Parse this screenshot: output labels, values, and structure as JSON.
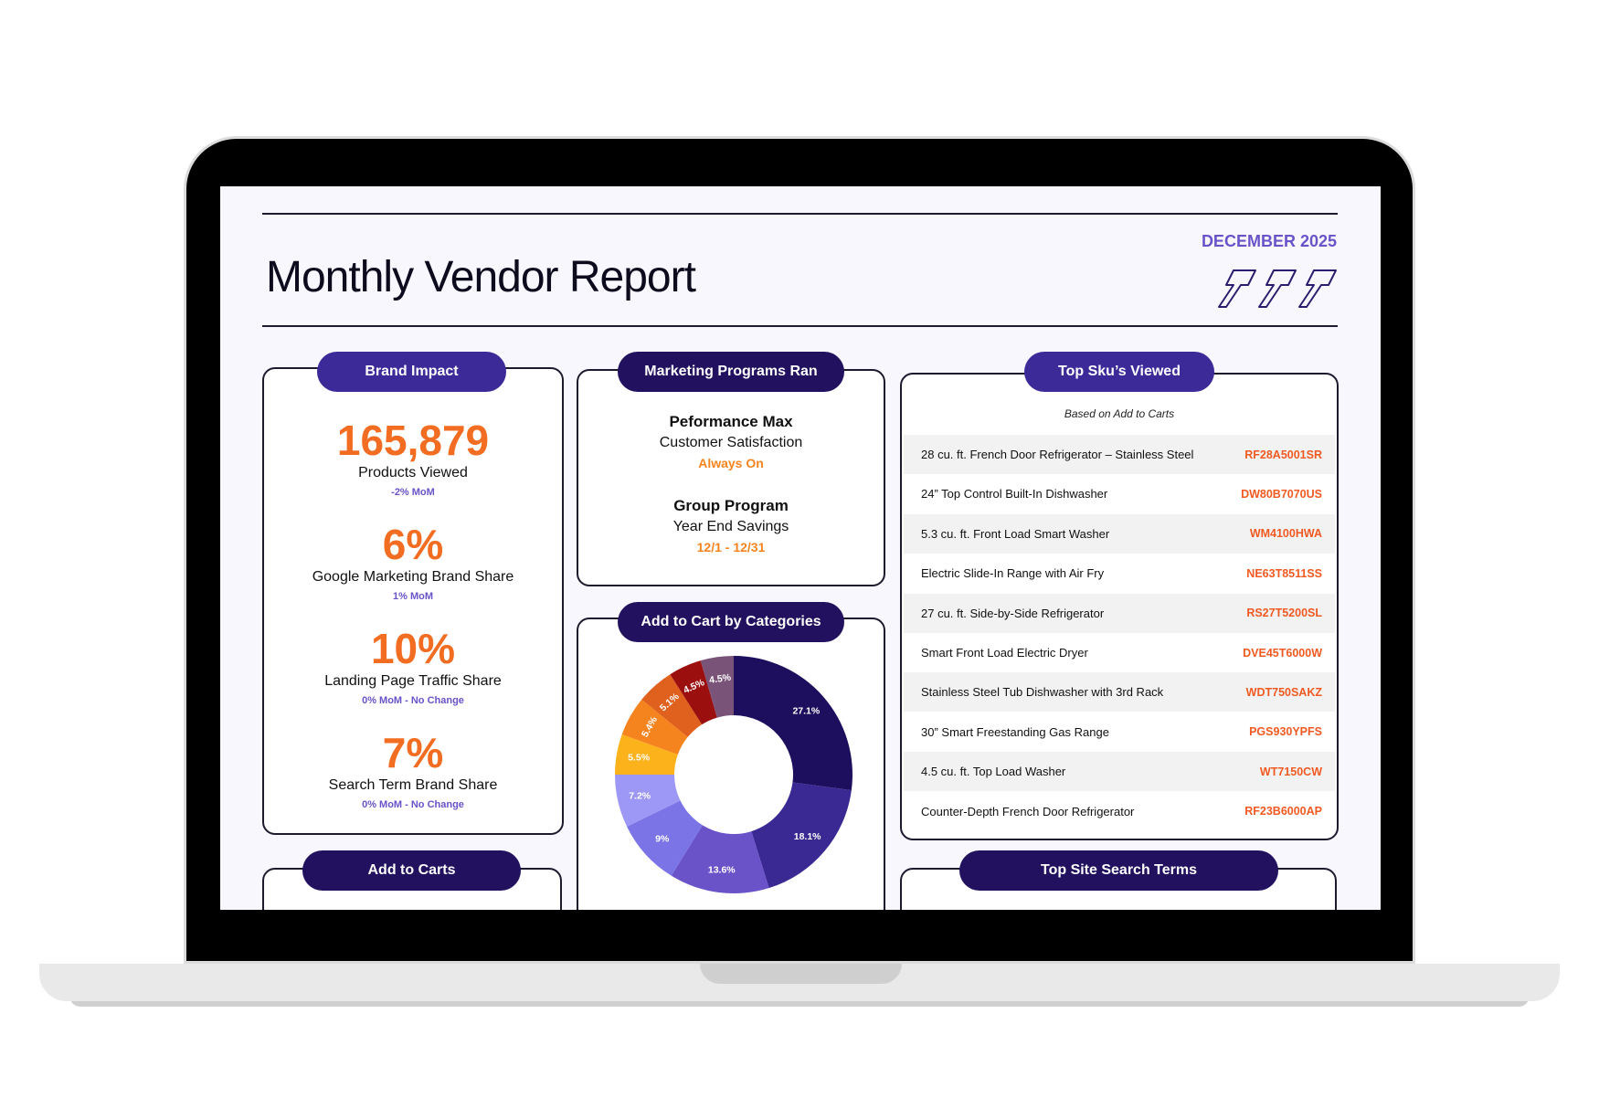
{
  "report": {
    "title": "Monthly Vendor Report",
    "date": "DECEMBER 2025"
  },
  "brand_impact": {
    "header": "Brand Impact",
    "metrics": [
      {
        "value": "165,879",
        "label": "Products Viewed",
        "change": "-2% MoM"
      },
      {
        "value": "6%",
        "label": "Google Marketing Brand Share",
        "change": "1% MoM"
      },
      {
        "value": "10%",
        "label": "Landing Page Traffic Share",
        "change": "0% MoM - No Change"
      },
      {
        "value": "7%",
        "label": "Search Term Brand Share",
        "change": "0% MoM - No Change"
      }
    ]
  },
  "marketing_programs": {
    "header": "Marketing Programs Ran",
    "programs": [
      {
        "title": "Peformance Max",
        "subtitle": "Customer Satisfaction",
        "note": "Always On"
      },
      {
        "title": "Group Program",
        "subtitle": "Year End Savings",
        "note": "12/1 - 12/31"
      }
    ]
  },
  "add_to_cart_categories": {
    "header": "Add to Cart by Categories"
  },
  "chart_data": {
    "type": "pie",
    "title": "Add to Cart by Categories",
    "donut": true,
    "values": [
      27.1,
      18.1,
      13.6,
      9,
      7.2,
      5.5,
      5.4,
      5.1,
      4.5,
      4.5
    ],
    "labels": [
      "27.1%",
      "18.1%",
      "13.6%",
      "9%",
      "7.2%",
      "5.5%",
      "5.4%",
      "5.1%",
      "4.5%",
      "4.5%"
    ],
    "colors": [
      "#1d0f5e",
      "#3a2993",
      "#6a53c9",
      "#7b74e6",
      "#9d97f5",
      "#fcb21a",
      "#f5841f",
      "#e0601d",
      "#9b0f0f",
      "#7a5478"
    ]
  },
  "top_skus": {
    "header": "Top Sku’s Viewed",
    "subtitle": "Based on Add to Carts",
    "rows": [
      {
        "name": "28 cu. ft. French Door Refrigerator – Stainless Steel",
        "code": "RF28A5001SR"
      },
      {
        "name": "24” Top Control Built-In Dishwasher",
        "code": "DW80B7070US"
      },
      {
        "name": "5.3 cu. ft. Front Load Smart Washer",
        "code": "WM4100HWA"
      },
      {
        "name": "Electric Slide-In Range with Air Fry",
        "code": "NE63T8511SS"
      },
      {
        "name": "27 cu. ft. Side-by-Side Refrigerator",
        "code": "RS27T5200SL"
      },
      {
        "name": "Smart Front Load Electric Dryer",
        "code": "DVE45T6000W"
      },
      {
        "name": "Stainless Steel Tub Dishwasher with 3rd Rack",
        "code": "WDT750SAKZ"
      },
      {
        "name": "30” Smart Freestanding Gas Range",
        "code": "PGS930YPFS"
      },
      {
        "name": "4.5 cu. ft. Top Load Washer",
        "code": "WT7150CW"
      },
      {
        "name": "Counter-Depth French Door Refrigerator",
        "code": "RF23B6000AP"
      }
    ]
  },
  "add_to_carts": {
    "header": "Add to Carts"
  },
  "top_search_terms": {
    "header": "Top Site Search Terms"
  }
}
